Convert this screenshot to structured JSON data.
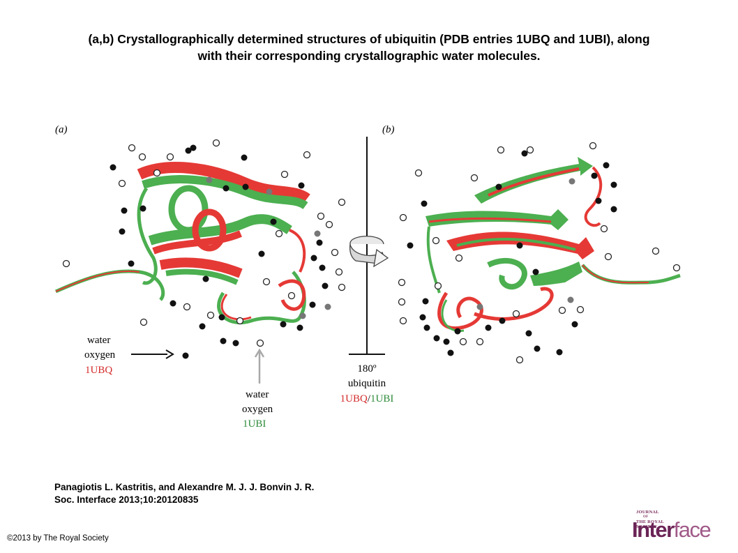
{
  "title": {
    "line1": "(a,b) Crystallographically determined structures of ubiquitin (PDB entries 1UBQ and 1UBI), along",
    "line2": "with their corresponding crystallographic water molecules."
  },
  "figure": {
    "panel_a_label": "(a)",
    "panel_b_label": "(b)",
    "label_1ubq": {
      "line1": "water",
      "line2": "oxygen",
      "line3": "1UBQ"
    },
    "label_1ubi": {
      "line1": "water",
      "line2": "oxygen",
      "line3": "1UBI"
    },
    "rotation": {
      "angle": "180º",
      "name": "ubiquitin",
      "pdb_a": "1UBQ",
      "separator": "/",
      "pdb_b": "1UBI"
    },
    "colors": {
      "ubq_red": "#d42a2a",
      "ubi_green": "#2e8b3a",
      "ribbon_green": "#4caf50",
      "ribbon_red": "#e53935",
      "arrow_gray": "#a8a8a8"
    }
  },
  "citation": {
    "line1": "Panagiotis L. Kastritis, and Alexandre M. J. J. Bonvin J. R.",
    "line2": "Soc. Interface 2013;10:20120835"
  },
  "copyright": "©2013 by The Royal Society",
  "logo": {
    "small_l1": "JOURNAL",
    "small_l2": "THE ROYAL",
    "small_l3": "SOCIETY",
    "small_of": "OF",
    "word_a": "Inter",
    "word_b": "face"
  }
}
